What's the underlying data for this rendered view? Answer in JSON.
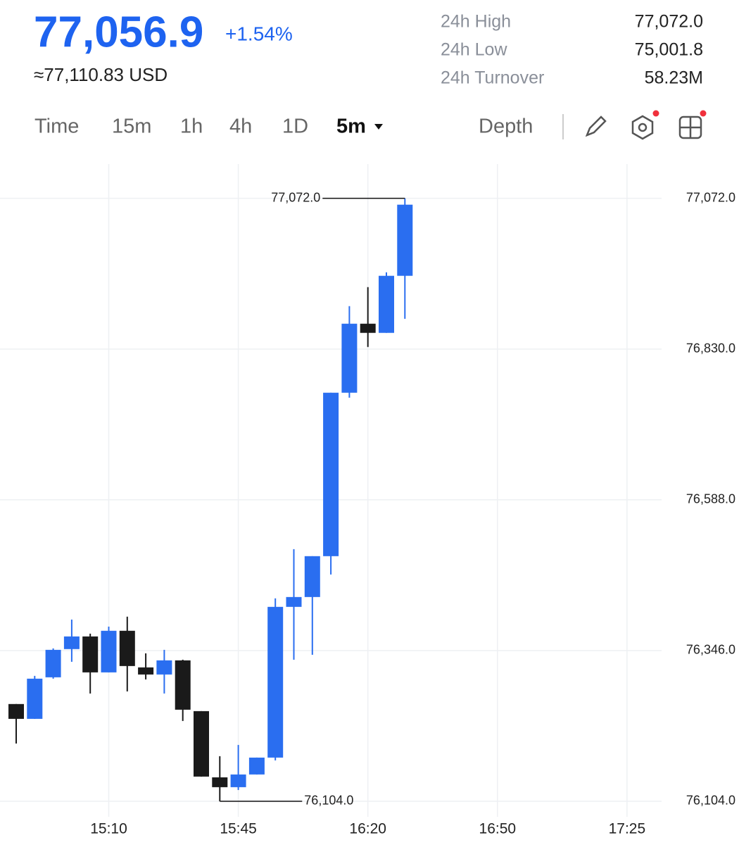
{
  "header": {
    "price": "77,056.9",
    "change": "+1.54%",
    "usd": "≈77,110.83 USD",
    "stats": [
      {
        "label": "24h High",
        "value": "77,072.0"
      },
      {
        "label": "24h Low",
        "value": "75,001.8"
      },
      {
        "label": "24h Turnover",
        "value": "58.23M"
      }
    ]
  },
  "tabs": [
    {
      "label": "Time"
    },
    {
      "label": "15m"
    },
    {
      "label": "1h"
    },
    {
      "label": "4h"
    },
    {
      "label": "1D"
    },
    {
      "label": "5m",
      "active": true
    },
    {
      "label": "Depth"
    }
  ],
  "chart_data": {
    "type": "candlestick",
    "categories": [
      null,
      null,
      null,
      null,
      null,
      "15:10",
      null,
      null,
      null,
      null,
      null,
      null,
      "15:45",
      null,
      null,
      null,
      null,
      null,
      null,
      "16:20",
      null,
      null,
      null,
      null,
      null,
      null,
      "16:50",
      null,
      null,
      null,
      null,
      null,
      null,
      "17:25",
      null
    ],
    "open": [
      76260.1,
      76236.3,
      76303.0,
      76348.3,
      76368.6,
      76310.9,
      76377.7,
      76318.9,
      76307.5,
      76330.2,
      76248.7,
      76142.4,
      76126.6,
      76147.0,
      76174.1,
      76416.1,
      76431.9,
      76497.5,
      76759.9,
      76870.7,
      76856.0,
      76947.6,
      null,
      null,
      null,
      null,
      null,
      null,
      null,
      null,
      null,
      null,
      null,
      null,
      null
    ],
    "high": [
      76260.1,
      76305.3,
      76349.4,
      76395.7,
      76373.1,
      76384.4,
      76400.3,
      76341.5,
      76347.1,
      76331.3,
      76248.7,
      76176.4,
      76194.5,
      76174.1,
      76429.7,
      76508.8,
      76497.5,
      76759.9,
      76898.9,
      76929.5,
      76953.2,
      77072.0,
      null,
      null,
      null,
      null,
      null,
      null,
      null,
      null,
      null,
      null,
      null,
      null,
      null
    ],
    "low": [
      76196.7,
      76236.3,
      76300.8,
      76327.9,
      76277.0,
      76310.9,
      76280.4,
      76299.6,
      76277.0,
      76232.9,
      76143.6,
      76104.0,
      76122.1,
      76147.0,
      76169.6,
      76331.3,
      76339.2,
      76468.1,
      76751.9,
      76833.4,
      76856.0,
      76878.6,
      null,
      null,
      null,
      null,
      null,
      null,
      null,
      null,
      null,
      null,
      null,
      null,
      null
    ],
    "close": [
      76236.3,
      76300.8,
      76347.1,
      76368.6,
      76310.9,
      76377.7,
      76321.1,
      76307.5,
      76330.2,
      76251.0,
      76143.6,
      76126.6,
      76147.0,
      76174.1,
      76416.1,
      76431.9,
      76497.5,
      76759.9,
      76870.7,
      76856.0,
      76947.6,
      77061.8,
      null,
      null,
      null,
      null,
      null,
      null,
      null,
      null,
      null,
      null,
      null,
      null,
      null
    ],
    "up_color": "#2a6ef0",
    "down_color": "#1a1a1a",
    "ylim": [
      76079,
      77127
    ],
    "yticks": [
      {
        "value": 76104,
        "label": "76,104.0"
      },
      {
        "value": 76346,
        "label": "76,346.0"
      },
      {
        "value": 76588,
        "label": "76,588.0"
      },
      {
        "value": 76830,
        "label": "76,830.0"
      },
      {
        "value": 77072,
        "label": "77,072.0"
      }
    ],
    "grid": true,
    "annotations": [
      {
        "value": 77072,
        "label": "77,072.0"
      },
      {
        "value": 76104,
        "label": "76,104.0"
      }
    ]
  }
}
